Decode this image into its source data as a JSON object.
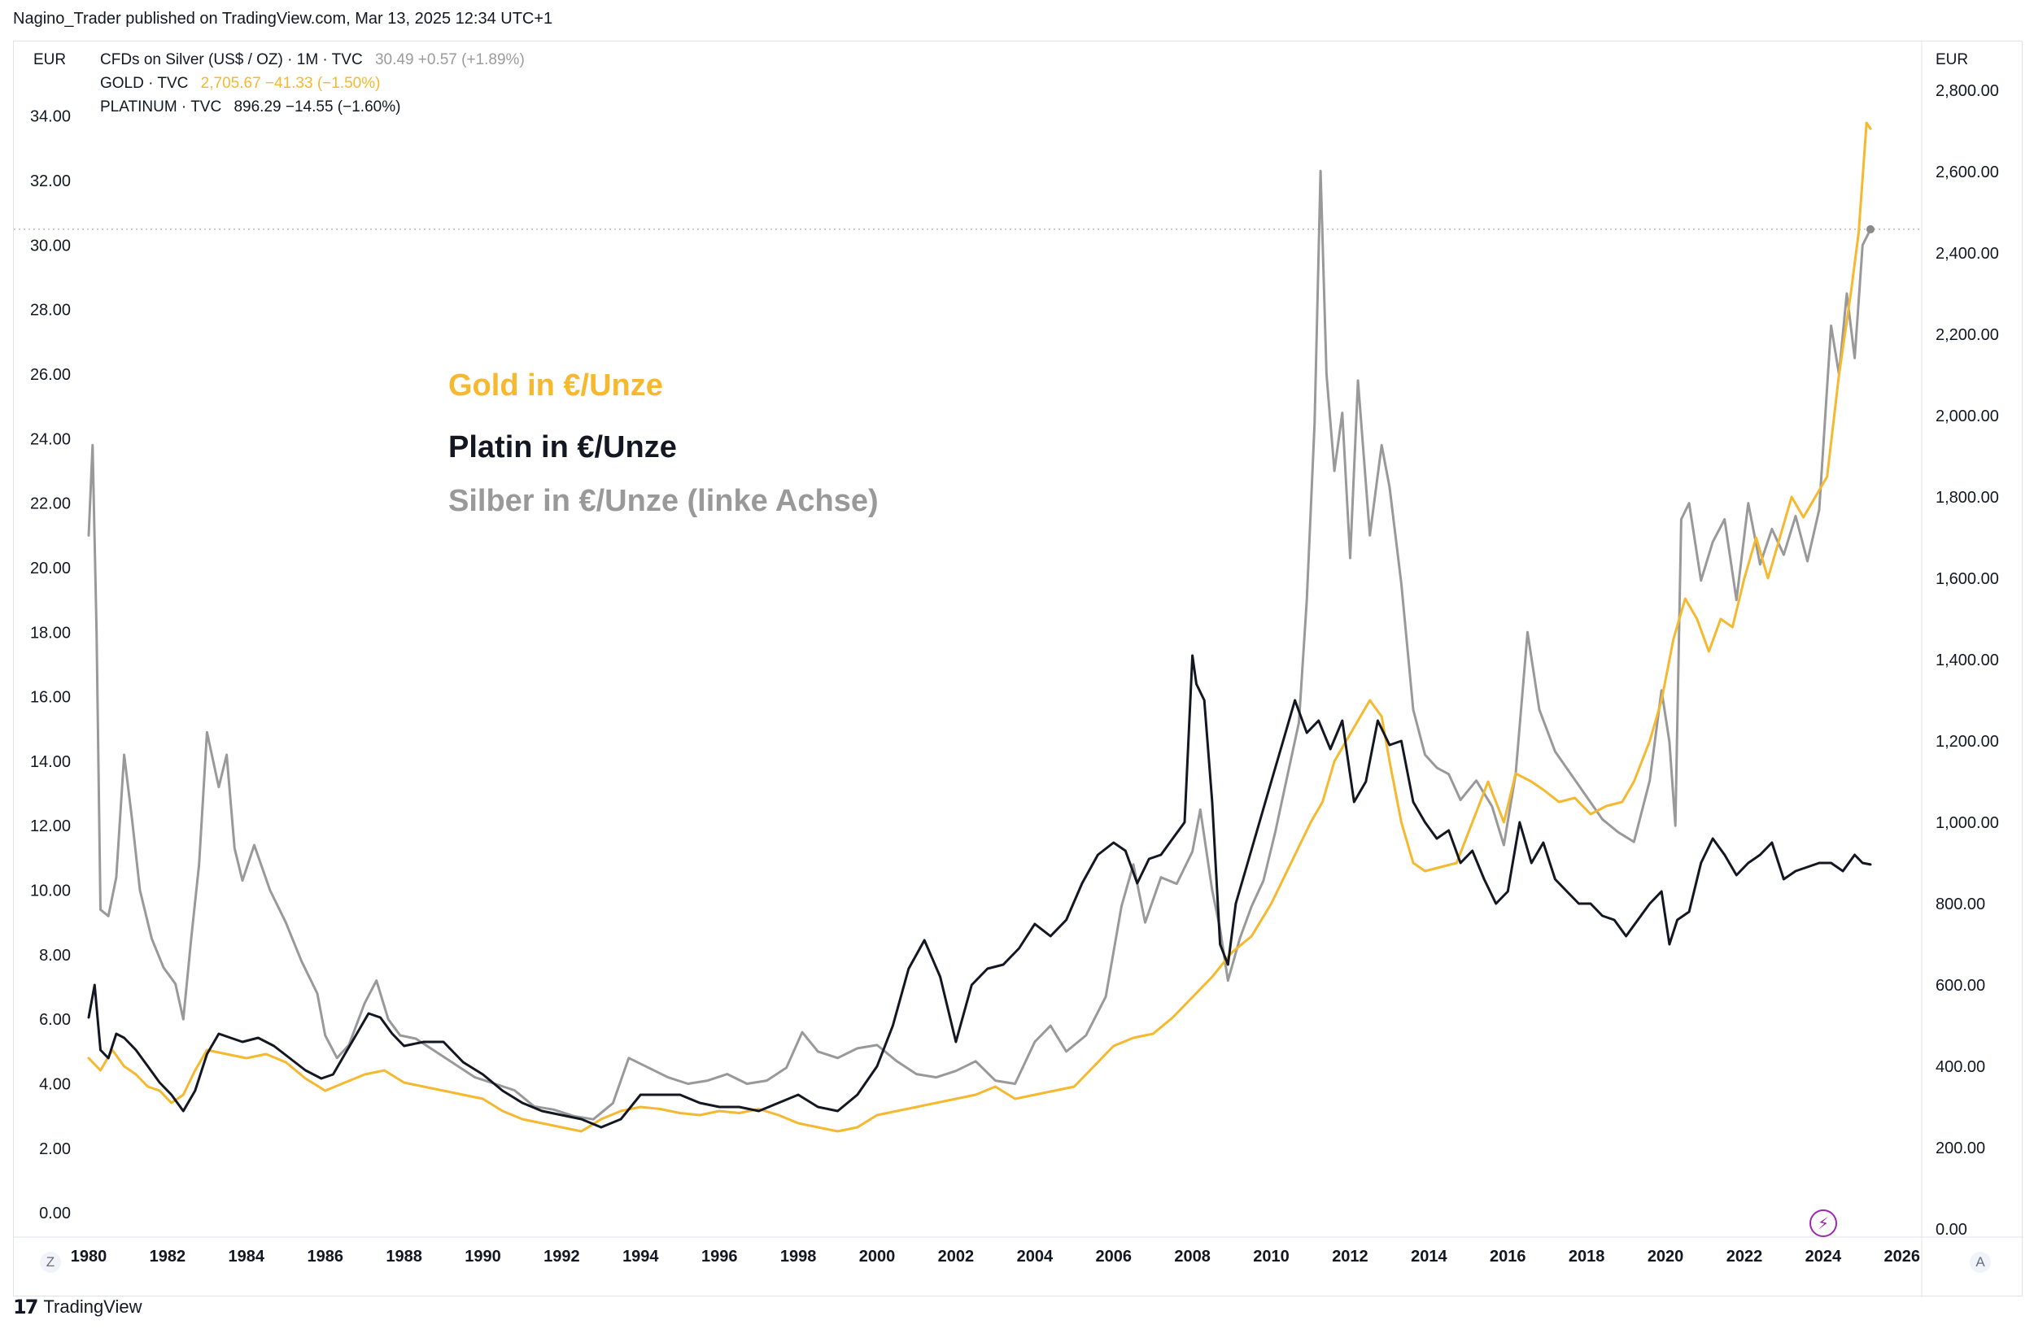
{
  "header": {
    "publisher_note": "Nagino_Trader published on TradingView.com, Mar 13, 2025 12:34 UTC+1"
  },
  "currency": {
    "left": "EUR",
    "right": "EUR"
  },
  "legend": [
    {
      "symbol": "CFDs on Silver (US$ / OZ) · 1M · TVC",
      "last": "30.49",
      "change": "+0.57 (+1.89%)",
      "color": "#a0a0a0"
    },
    {
      "symbol": "GOLD · TVC",
      "last": "2,705.67",
      "change": "−41.33 (−1.50%)",
      "color": "#f5b82e"
    },
    {
      "symbol": "PLATINUM · TVC",
      "last": "896.29",
      "change": "−14.55 (−1.60%)",
      "color": "#131722"
    }
  ],
  "annotations": {
    "gold": "Gold in €/Unze",
    "platinum": "Platin in €/Unze",
    "silver": "Silber in €/Unze (linke Achse)"
  },
  "corner_buttons": {
    "left": "Z",
    "right": "A"
  },
  "footer": {
    "logo": "17",
    "brand": "TradingView"
  },
  "colors": {
    "gold": "#f5b82e",
    "platinum": "#131722",
    "silver": "#999999",
    "grid": "#e6e8ee",
    "flash": "#9c27b0"
  },
  "icons": {
    "flash": "lightning-icon"
  },
  "chart_data": {
    "type": "line",
    "xlim": [
      1980,
      2026.5
    ],
    "x_ticks": [
      "1980",
      "1982",
      "1984",
      "1986",
      "1988",
      "1990",
      "1992",
      "1994",
      "1996",
      "1998",
      "2000",
      "2002",
      "2004",
      "2006",
      "2008",
      "2010",
      "2012",
      "2014",
      "2016",
      "2018",
      "2020",
      "2022",
      "2024",
      "2026"
    ],
    "left_axis": {
      "ylim": [
        -0.5,
        34.8
      ],
      "ticks": [
        "0.00",
        "2.00",
        "4.00",
        "6.00",
        "8.00",
        "10.00",
        "12.00",
        "14.00",
        "16.00",
        "18.00",
        "20.00",
        "22.00",
        "24.00",
        "26.00",
        "28.00",
        "30.00",
        "32.00",
        "34.00"
      ],
      "tick_values": [
        0,
        2,
        4,
        6,
        8,
        10,
        12,
        14,
        16,
        18,
        20,
        22,
        24,
        26,
        28,
        30,
        32,
        34
      ]
    },
    "right_axis": {
      "ylim": [
        0,
        2800
      ],
      "ticks": [
        "0.00",
        "200.00",
        "400.00",
        "600.00",
        "800.00",
        "1,000.00",
        "1,200.00",
        "1,400.00",
        "1,600.00",
        "1,800.00",
        "2,000.00",
        "2,200.00",
        "2,400.00",
        "2,600.00",
        "2,800.00"
      ],
      "tick_values": [
        0,
        200,
        400,
        600,
        800,
        1000,
        1200,
        1400,
        1600,
        1800,
        2000,
        2200,
        2400,
        2600,
        2800
      ]
    },
    "price_line": 30.49,
    "series": [
      {
        "name": "CFDs on Silver (US$ / OZ)",
        "axis": "left",
        "color": "#999999",
        "x": [
          1980.0,
          1980.1,
          1980.2,
          1980.3,
          1980.5,
          1980.7,
          1980.9,
          1981.1,
          1981.3,
          1981.6,
          1981.9,
          1982.2,
          1982.4,
          1982.6,
          1982.8,
          1983.0,
          1983.3,
          1983.5,
          1983.7,
          1983.9,
          1984.2,
          1984.6,
          1985.0,
          1985.4,
          1985.8,
          1986.0,
          1986.3,
          1986.6,
          1987.0,
          1987.3,
          1987.6,
          1987.9,
          1988.3,
          1988.8,
          1989.3,
          1989.8,
          1990.3,
          1990.8,
          1991.3,
          1991.8,
          1992.3,
          1992.8,
          1993.3,
          1993.7,
          1994.2,
          1994.7,
          1995.2,
          1995.7,
          1996.2,
          1996.7,
          1997.2,
          1997.7,
          1998.1,
          1998.5,
          1999.0,
          1999.5,
          2000.0,
          2000.5,
          2001.0,
          2001.5,
          2002.0,
          2002.5,
          2003.0,
          2003.5,
          2004.0,
          2004.4,
          2004.8,
          2005.3,
          2005.8,
          2006.2,
          2006.5,
          2006.8,
          2007.2,
          2007.6,
          2008.0,
          2008.2,
          2008.5,
          2008.7,
          2008.9,
          2009.2,
          2009.5,
          2009.8,
          2010.1,
          2010.4,
          2010.7,
          2010.9,
          2011.1,
          2011.25,
          2011.4,
          2011.6,
          2011.8,
          2012.0,
          2012.2,
          2012.5,
          2012.8,
          2013.0,
          2013.3,
          2013.6,
          2013.9,
          2014.2,
          2014.5,
          2014.8,
          2015.2,
          2015.6,
          2015.9,
          2016.2,
          2016.5,
          2016.8,
          2017.2,
          2017.6,
          2018.0,
          2018.4,
          2018.8,
          2019.2,
          2019.6,
          2019.9,
          2020.1,
          2020.25,
          2020.4,
          2020.6,
          2020.9,
          2021.2,
          2021.5,
          2021.8,
          2022.1,
          2022.4,
          2022.7,
          2023.0,
          2023.3,
          2023.6,
          2023.9,
          2024.2,
          2024.4,
          2024.6,
          2024.8,
          2025.0,
          2025.2
        ],
        "y": [
          21.0,
          23.8,
          18.0,
          9.4,
          9.2,
          10.4,
          14.2,
          12.2,
          10.0,
          8.5,
          7.6,
          7.1,
          6.0,
          8.5,
          10.8,
          14.9,
          13.2,
          14.2,
          11.3,
          10.3,
          11.4,
          10.0,
          9.0,
          7.8,
          6.8,
          5.5,
          4.8,
          5.2,
          6.5,
          7.2,
          6.0,
          5.5,
          5.4,
          5.0,
          4.6,
          4.2,
          4.0,
          3.8,
          3.3,
          3.2,
          3.0,
          2.9,
          3.4,
          4.8,
          4.5,
          4.2,
          4.0,
          4.1,
          4.3,
          4.0,
          4.1,
          4.5,
          5.6,
          5.0,
          4.8,
          5.1,
          5.2,
          4.7,
          4.3,
          4.2,
          4.4,
          4.7,
          4.1,
          4.0,
          5.3,
          5.8,
          5.0,
          5.5,
          6.7,
          9.5,
          10.8,
          9.0,
          10.4,
          10.2,
          11.2,
          12.5,
          10.0,
          8.8,
          7.2,
          8.5,
          9.5,
          10.3,
          11.8,
          13.5,
          15.2,
          19.0,
          24.5,
          32.3,
          26.0,
          23.0,
          24.8,
          20.3,
          25.8,
          21.0,
          23.8,
          22.5,
          19.5,
          15.6,
          14.2,
          13.8,
          13.6,
          12.8,
          13.4,
          12.6,
          11.4,
          13.6,
          18.0,
          15.6,
          14.3,
          13.6,
          12.9,
          12.2,
          11.8,
          11.5,
          13.4,
          16.2,
          14.6,
          12.0,
          21.5,
          22.0,
          19.6,
          20.8,
          21.5,
          19.0,
          22.0,
          20.1,
          21.2,
          20.4,
          21.6,
          20.2,
          21.8,
          27.5,
          26.0,
          28.5,
          26.5,
          30.0,
          30.49
        ]
      },
      {
        "name": "GOLD · TVC",
        "axis": "right",
        "color": "#f5b82e",
        "x": [
          1980.0,
          1980.3,
          1980.6,
          1980.9,
          1981.2,
          1981.5,
          1981.8,
          1982.1,
          1982.4,
          1982.7,
          1983.0,
          1983.5,
          1984.0,
          1984.5,
          1985.0,
          1985.5,
          1986.0,
          1986.5,
          1987.0,
          1987.5,
          1988.0,
          1988.5,
          1989.0,
          1989.5,
          1990.0,
          1990.5,
          1991.0,
          1991.5,
          1992.0,
          1992.5,
          1993.0,
          1993.5,
          1994.0,
          1994.5,
          1995.0,
          1995.5,
          1996.0,
          1996.5,
          1997.0,
          1997.5,
          1998.0,
          1998.5,
          1999.0,
          1999.5,
          2000.0,
          2000.5,
          2001.0,
          2001.5,
          2002.0,
          2002.5,
          2003.0,
          2003.5,
          2004.0,
          2004.5,
          2005.0,
          2005.5,
          2006.0,
          2006.5,
          2007.0,
          2007.5,
          2008.0,
          2008.5,
          2009.0,
          2009.5,
          2010.0,
          2010.5,
          2011.0,
          2011.3,
          2011.6,
          2011.9,
          2012.2,
          2012.5,
          2012.8,
          2013.0,
          2013.3,
          2013.6,
          2013.9,
          2014.3,
          2014.7,
          2015.1,
          2015.5,
          2015.9,
          2016.2,
          2016.6,
          2016.9,
          2017.3,
          2017.7,
          2018.1,
          2018.5,
          2018.9,
          2019.2,
          2019.6,
          2019.9,
          2020.2,
          2020.5,
          2020.8,
          2021.1,
          2021.4,
          2021.7,
          2022.0,
          2022.3,
          2022.6,
          2022.9,
          2023.2,
          2023.5,
          2023.8,
          2024.1,
          2024.4,
          2024.7,
          2024.9,
          2025.1,
          2025.2
        ],
        "y": [
          420,
          390,
          440,
          400,
          380,
          350,
          340,
          310,
          330,
          390,
          440,
          430,
          420,
          430,
          410,
          370,
          340,
          360,
          380,
          390,
          360,
          350,
          340,
          330,
          320,
          290,
          270,
          260,
          250,
          240,
          270,
          290,
          300,
          295,
          285,
          280,
          290,
          285,
          295,
          280,
          260,
          250,
          240,
          250,
          280,
          290,
          300,
          310,
          320,
          330,
          350,
          320,
          330,
          340,
          350,
          400,
          450,
          470,
          480,
          520,
          570,
          620,
          680,
          720,
          800,
          900,
          1000,
          1050,
          1150,
          1200,
          1250,
          1300,
          1260,
          1150,
          1000,
          900,
          880,
          890,
          900,
          1000,
          1100,
          1000,
          1120,
          1100,
          1080,
          1050,
          1060,
          1020,
          1040,
          1050,
          1100,
          1200,
          1300,
          1450,
          1550,
          1500,
          1420,
          1500,
          1480,
          1600,
          1700,
          1600,
          1700,
          1800,
          1750,
          1800,
          1850,
          2100,
          2300,
          2450,
          2720,
          2705.67
        ]
      },
      {
        "name": "PLATINUM · TVC",
        "axis": "right",
        "color": "#131722",
        "x": [
          1980.0,
          1980.15,
          1980.3,
          1980.5,
          1980.7,
          1980.9,
          1981.2,
          1981.5,
          1981.8,
          1982.1,
          1982.4,
          1982.7,
          1983.0,
          1983.3,
          1983.6,
          1983.9,
          1984.3,
          1984.7,
          1985.1,
          1985.5,
          1985.9,
          1986.2,
          1986.5,
          1986.8,
          1987.1,
          1987.4,
          1987.7,
          1988.0,
          1988.5,
          1989.0,
          1989.5,
          1990.0,
          1990.5,
          1991.0,
          1991.5,
          1992.0,
          1992.5,
          1993.0,
          1993.5,
          1994.0,
          1994.5,
          1995.0,
          1995.5,
          1996.0,
          1996.5,
          1997.0,
          1997.5,
          1998.0,
          1998.5,
          1999.0,
          1999.5,
          2000.0,
          2000.4,
          2000.8,
          2001.2,
          2001.6,
          2002.0,
          2002.4,
          2002.8,
          2003.2,
          2003.6,
          2004.0,
          2004.4,
          2004.8,
          2005.2,
          2005.6,
          2006.0,
          2006.3,
          2006.6,
          2006.9,
          2007.2,
          2007.5,
          2007.8,
          2008.0,
          2008.1,
          2008.3,
          2008.5,
          2008.7,
          2008.9,
          2009.1,
          2009.4,
          2009.7,
          2010.0,
          2010.3,
          2010.6,
          2010.9,
          2011.2,
          2011.5,
          2011.8,
          2012.1,
          2012.4,
          2012.7,
          2013.0,
          2013.3,
          2013.6,
          2013.9,
          2014.2,
          2014.5,
          2014.8,
          2015.1,
          2015.4,
          2015.7,
          2016.0,
          2016.3,
          2016.6,
          2016.9,
          2017.2,
          2017.5,
          2017.8,
          2018.1,
          2018.4,
          2018.7,
          2019.0,
          2019.3,
          2019.6,
          2019.9,
          2020.1,
          2020.3,
          2020.6,
          2020.9,
          2021.2,
          2021.5,
          2021.8,
          2022.1,
          2022.4,
          2022.7,
          2023.0,
          2023.3,
          2023.6,
          2023.9,
          2024.2,
          2024.5,
          2024.8,
          2025.0,
          2025.2
        ],
        "y": [
          520,
          600,
          440,
          420,
          480,
          470,
          440,
          400,
          360,
          330,
          290,
          340,
          430,
          480,
          470,
          460,
          470,
          450,
          420,
          390,
          370,
          380,
          430,
          480,
          530,
          520,
          480,
          450,
          460,
          460,
          410,
          380,
          340,
          310,
          290,
          280,
          270,
          250,
          270,
          330,
          330,
          330,
          310,
          300,
          300,
          290,
          310,
          330,
          300,
          290,
          330,
          400,
          500,
          640,
          710,
          620,
          460,
          600,
          640,
          650,
          690,
          750,
          720,
          760,
          850,
          920,
          950,
          930,
          850,
          910,
          920,
          960,
          1000,
          1410,
          1340,
          1300,
          1050,
          700,
          650,
          800,
          900,
          1000,
          1100,
          1200,
          1300,
          1220,
          1250,
          1180,
          1250,
          1050,
          1100,
          1250,
          1190,
          1200,
          1050,
          1000,
          960,
          980,
          900,
          930,
          860,
          800,
          830,
          1000,
          900,
          950,
          860,
          830,
          800,
          800,
          770,
          760,
          720,
          760,
          800,
          830,
          700,
          760,
          780,
          900,
          960,
          920,
          870,
          900,
          920,
          950,
          860,
          880,
          890,
          900,
          900,
          880,
          920,
          900,
          896.29
        ]
      }
    ]
  }
}
